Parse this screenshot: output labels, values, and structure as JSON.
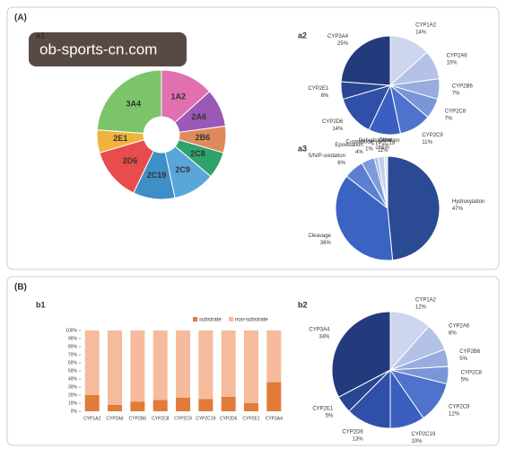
{
  "panels": [
    "(A)",
    "(B)"
  ],
  "watermark": "ob-sports-cn.com",
  "chart_data": [
    {
      "type": "sunburst",
      "panel": "a1",
      "categories": [
        "1A2",
        "2A6",
        "2B6",
        "2C8",
        "2C9",
        "2C19",
        "2D6",
        "2E1",
        "3A4"
      ],
      "values": [
        14,
        10,
        7,
        7,
        11,
        11,
        14,
        6,
        25
      ],
      "colors": [
        "#e070b0",
        "#9b59b6",
        "#e08a5c",
        "#2fa36b",
        "#5aa6d8",
        "#3d8fc6",
        "#e84c4c",
        "#f2b33d",
        "#7cc46a"
      ]
    },
    {
      "type": "pie",
      "panel": "a2",
      "categories": [
        "CYP1A2",
        "CYP2A6",
        "CYP2B6",
        "CYP2C8",
        "CYP2C9",
        "CYP2C19",
        "CYP2D6",
        "CYP2E1",
        "CYP3A4"
      ],
      "values": [
        14,
        10,
        7,
        7,
        11,
        11,
        14,
        6,
        25
      ],
      "value_labels": [
        "14%",
        "10%",
        "7%",
        "7%",
        "11%",
        "11%",
        "14%",
        "6%",
        "25%"
      ],
      "colors": [
        "#cdd6ee",
        "#b3c2e6",
        "#98acde",
        "#7b96d6",
        "#4f73cc",
        "#3a5fc0",
        "#2f4fa8",
        "#2a4592",
        "#233b7c"
      ]
    },
    {
      "type": "pie",
      "panel": "a3",
      "categories": [
        "Hydroxylation",
        "Cleavage",
        "S/N/P-oxidation",
        "Epoxidation",
        "C-oxidation",
        "Dehydrogenation",
        "Other"
      ],
      "values": [
        47,
        36,
        6,
        4,
        1,
        2,
        1
      ],
      "value_labels": [
        "47%",
        "36%",
        "6%",
        "4%",
        "1%",
        "2%",
        "1%"
      ],
      "colors": [
        "#2b4a94",
        "#3b63c2",
        "#5b80d2",
        "#7d9ad9",
        "#a3b6e3",
        "#c4d0ec",
        "#dde4f3"
      ]
    },
    {
      "type": "stacked_bar",
      "panel": "b1",
      "categories": [
        "CYP1A2",
        "CYP2A6",
        "CYP2B6",
        "CYP2C8",
        "CYP2C9",
        "CYP2C19",
        "CYP2D6",
        "CYP2E1",
        "CYP3A4"
      ],
      "series": [
        {
          "name": "substrate",
          "color": "#e07b39",
          "values": [
            20,
            8,
            12,
            14,
            17,
            15,
            18,
            10,
            36
          ]
        },
        {
          "name": "non-substrate",
          "color": "#f5bb9c",
          "values": [
            80,
            92,
            88,
            86,
            83,
            85,
            82,
            90,
            64
          ]
        }
      ],
      "ylim": [
        0,
        100
      ],
      "yticks": [
        {
          "value": 0,
          "label": "0%"
        },
        {
          "value": 10,
          "label": "10%"
        },
        {
          "value": 20,
          "label": "20%"
        },
        {
          "value": 30,
          "label": "30%"
        },
        {
          "value": 40,
          "label": "40%"
        },
        {
          "value": 50,
          "label": "50%"
        },
        {
          "value": 60,
          "label": "60%"
        },
        {
          "value": 70,
          "label": "70%"
        },
        {
          "value": 80,
          "label": "80%"
        },
        {
          "value": 90,
          "label": "90%"
        },
        {
          "value": 100,
          "label": "100%"
        }
      ]
    },
    {
      "type": "pie",
      "panel": "b2",
      "categories": [
        "CYP1A2",
        "CYP2A6",
        "CYP2B6",
        "CYP2C8",
        "CYP2C9",
        "CYP2C19",
        "CYP2D6",
        "CYP2E1",
        "CYP3A4"
      ],
      "values": [
        12,
        8,
        5,
        5,
        12,
        10,
        13,
        5,
        34
      ],
      "value_labels": [
        "12%",
        "8%",
        "5%",
        "5%",
        "12%",
        "10%",
        "13%",
        "5%",
        "34%"
      ],
      "colors": [
        "#cdd6ee",
        "#b3c2e6",
        "#98acde",
        "#7b96d6",
        "#4f73cc",
        "#3a5fc0",
        "#2f4fa8",
        "#2a4592",
        "#233b7c"
      ]
    }
  ]
}
